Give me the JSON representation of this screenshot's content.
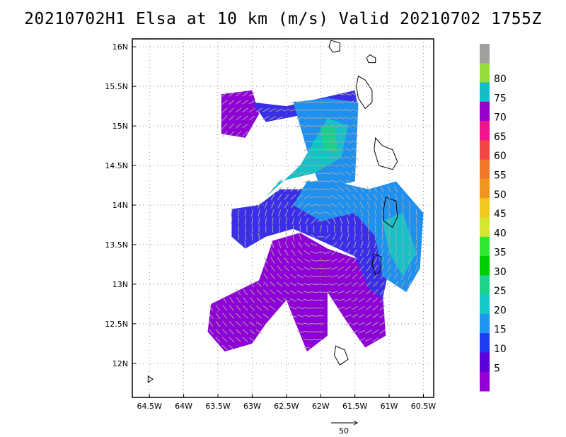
{
  "chart_data": {
    "type": "heatmap",
    "title": "20210702H1 Elsa at 10 km (m/s) Valid 20210702  1755Z",
    "x_ticks": [
      "64.5W",
      "64W",
      "63.5W",
      "63W",
      "62.5W",
      "62W",
      "61.5W",
      "61W",
      "60.5W"
    ],
    "x_values": [
      -64.5,
      -64,
      -63.5,
      -63,
      -62.5,
      -62,
      -61.5,
      -61,
      -60.5
    ],
    "y_ticks": [
      "16N",
      "15.5N",
      "15N",
      "14.5N",
      "14N",
      "13.5N",
      "13N",
      "12.5N",
      "12N"
    ],
    "y_values": [
      16,
      15.5,
      15,
      14.5,
      14,
      13.5,
      13,
      12.5,
      12
    ],
    "xlim": [
      -64.75,
      -60.35
    ],
    "ylim": [
      11.57,
      16.1
    ],
    "grid": true,
    "colorbar": {
      "labels": [
        "5",
        "10",
        "15",
        "20",
        "25",
        "30",
        "35",
        "40",
        "45",
        "50",
        "55",
        "60",
        "65",
        "70",
        "75",
        "80"
      ],
      "colors": [
        "#9400d3",
        "#5b00d8",
        "#1e3cf0",
        "#1e96f0",
        "#14c8c8",
        "#1ed28c",
        "#00cd00",
        "#32e632",
        "#d2e632",
        "#f0c81e",
        "#f0961e",
        "#f07828",
        "#f04646",
        "#f0148c",
        "#9600c8",
        "#14bec8",
        "#96dc3c",
        "#a0a0a0"
      ]
    },
    "reference_vector": {
      "label": "50",
      "value": 50
    },
    "regions": [
      {
        "level": "5-10",
        "polygon": [
          [
            -63.6,
            12.75
          ],
          [
            -62.9,
            13.05
          ],
          [
            -62.7,
            13.55
          ],
          [
            -62.3,
            13.65
          ],
          [
            -61.9,
            13.45
          ],
          [
            -61.4,
            13.3
          ],
          [
            -61.1,
            12.95
          ],
          [
            -61.05,
            12.35
          ],
          [
            -61.35,
            12.2
          ],
          [
            -61.6,
            12.5
          ],
          [
            -61.9,
            12.9
          ],
          [
            -61.9,
            12.35
          ],
          [
            -62.2,
            12.15
          ],
          [
            -62.5,
            12.8
          ],
          [
            -62.8,
            12.5
          ],
          [
            -63.0,
            12.25
          ],
          [
            -63.4,
            12.15
          ],
          [
            -63.65,
            12.4
          ]
        ]
      },
      {
        "level": "5-10",
        "polygon": [
          [
            -63.45,
            15.4
          ],
          [
            -63.0,
            15.45
          ],
          [
            -62.9,
            15.15
          ],
          [
            -63.1,
            14.85
          ],
          [
            -63.45,
            14.9
          ]
        ]
      },
      {
        "level": "10-15",
        "polygon": [
          [
            -63.3,
            13.95
          ],
          [
            -62.9,
            14.0
          ],
          [
            -62.6,
            14.2
          ],
          [
            -62.0,
            14.2
          ],
          [
            -61.3,
            14.15
          ],
          [
            -61.1,
            13.6
          ],
          [
            -61.0,
            13.2
          ],
          [
            -61.1,
            12.8
          ],
          [
            -61.3,
            12.95
          ],
          [
            -61.5,
            13.35
          ],
          [
            -62.0,
            13.55
          ],
          [
            -62.4,
            13.7
          ],
          [
            -62.8,
            13.6
          ],
          [
            -63.1,
            13.45
          ],
          [
            -63.3,
            13.6
          ]
        ]
      },
      {
        "level": "10-15",
        "polygon": [
          [
            -63.0,
            15.3
          ],
          [
            -62.5,
            15.25
          ],
          [
            -62.0,
            15.35
          ],
          [
            -61.5,
            15.45
          ],
          [
            -61.45,
            15.2
          ],
          [
            -62.2,
            15.15
          ],
          [
            -62.8,
            15.05
          ]
        ]
      },
      {
        "level": "15-20",
        "polygon": [
          [
            -62.2,
            14.3
          ],
          [
            -61.8,
            14.3
          ],
          [
            -61.3,
            14.2
          ],
          [
            -60.9,
            14.3
          ],
          [
            -60.5,
            13.9
          ],
          [
            -60.55,
            13.2
          ],
          [
            -60.75,
            12.9
          ],
          [
            -61.1,
            13.1
          ],
          [
            -61.2,
            13.6
          ],
          [
            -61.5,
            13.9
          ],
          [
            -62.0,
            13.8
          ],
          [
            -62.4,
            14.0
          ]
        ]
      },
      {
        "level": "15-20",
        "polygon": [
          [
            -62.4,
            15.3
          ],
          [
            -61.9,
            15.35
          ],
          [
            -61.45,
            15.3
          ],
          [
            -61.5,
            14.3
          ],
          [
            -62.0,
            14.2
          ],
          [
            -62.2,
            14.7
          ]
        ]
      },
      {
        "level": "20-25",
        "polygon": [
          [
            -62.6,
            14.3
          ],
          [
            -62.1,
            14.4
          ],
          [
            -61.7,
            14.6
          ],
          [
            -61.6,
            15.0
          ],
          [
            -61.9,
            15.1
          ],
          [
            -62.1,
            14.8
          ],
          [
            -62.3,
            14.5
          ],
          [
            -62.8,
            14.1
          ]
        ]
      },
      {
        "level": "20-25",
        "polygon": [
          [
            -61.1,
            13.8
          ],
          [
            -60.8,
            13.9
          ],
          [
            -60.6,
            13.4
          ],
          [
            -60.8,
            13.1
          ],
          [
            -61.0,
            13.4
          ]
        ]
      },
      {
        "level": "25-30",
        "polygon": [
          [
            -62.0,
            15.0
          ],
          [
            -61.8,
            15.0
          ],
          [
            -61.75,
            14.65
          ],
          [
            -61.95,
            14.7
          ]
        ]
      }
    ],
    "coastline_islands": [
      {
        "polygon": [
          [
            -61.45,
            15.63
          ],
          [
            -61.35,
            15.58
          ],
          [
            -61.25,
            15.45
          ],
          [
            -61.25,
            15.3
          ],
          [
            -61.35,
            15.22
          ],
          [
            -61.45,
            15.35
          ],
          [
            -61.48,
            15.5
          ]
        ]
      },
      {
        "polygon": [
          [
            -61.2,
            14.85
          ],
          [
            -61.1,
            14.75
          ],
          [
            -60.95,
            14.7
          ],
          [
            -60.88,
            14.55
          ],
          [
            -60.95,
            14.45
          ],
          [
            -61.15,
            14.5
          ],
          [
            -61.22,
            14.7
          ]
        ]
      },
      {
        "polygon": [
          [
            -61.05,
            14.1
          ],
          [
            -60.9,
            14.05
          ],
          [
            -60.88,
            13.85
          ],
          [
            -60.95,
            13.72
          ],
          [
            -61.08,
            13.8
          ],
          [
            -61.08,
            13.95
          ]
        ]
      },
      {
        "polygon": [
          [
            -61.22,
            13.38
          ],
          [
            -61.12,
            13.35
          ],
          [
            -61.12,
            13.17
          ],
          [
            -61.2,
            13.12
          ],
          [
            -61.25,
            13.25
          ]
        ]
      },
      {
        "polygon": [
          [
            -61.78,
            12.22
          ],
          [
            -61.65,
            12.17
          ],
          [
            -61.6,
            12.05
          ],
          [
            -61.72,
            11.98
          ],
          [
            -61.8,
            12.1
          ]
        ]
      },
      {
        "polygon": [
          [
            -61.85,
            16.08
          ],
          [
            -61.72,
            16.05
          ],
          [
            -61.72,
            15.95
          ],
          [
            -61.82,
            15.93
          ],
          [
            -61.88,
            16.0
          ]
        ]
      },
      {
        "polygon": [
          [
            -61.28,
            15.9
          ],
          [
            -61.2,
            15.86
          ],
          [
            -61.2,
            15.8
          ],
          [
            -61.3,
            15.8
          ],
          [
            -61.33,
            15.86
          ]
        ]
      },
      {
        "polygon": [
          [
            -64.52,
            11.84
          ],
          [
            -64.45,
            11.8
          ],
          0,
          [
            -64.52,
            11.76
          ]
        ]
      }
    ]
  }
}
